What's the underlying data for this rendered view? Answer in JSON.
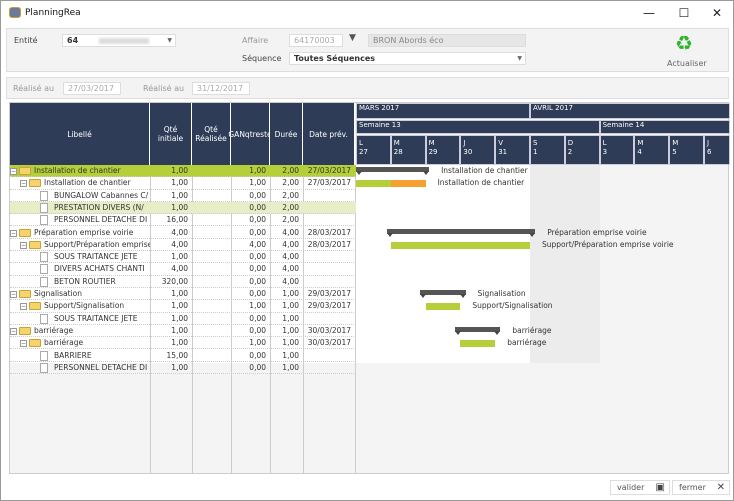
{
  "window": {
    "title": "PlanningRea",
    "minimize": "—",
    "maximize": "☐",
    "close": "✕"
  },
  "filters": {
    "entite_label": "Entité",
    "entite_value": "64",
    "affaire_label": "Affaire",
    "affaire_value": "64170003",
    "affaire_name": "BRON Abords éco",
    "sequence_label": "Séquence",
    "sequence_value": "Toutes Séquences",
    "refresh_label": "Actualiser"
  },
  "dates": {
    "realise_label_1": "Réalisé au",
    "realise_value_1": "27/03/2017",
    "realise_label_2": "Réalisé au",
    "realise_value_2": "31/12/2017"
  },
  "columns": [
    "Libellé",
    "Qté initiale",
    "Qté Réalisée",
    "GANqtreste",
    "Durée",
    "Date prév."
  ],
  "gantt": {
    "months": [
      "MARS 2017",
      "AVRIL 2017"
    ],
    "weeks": [
      "Semaine 13",
      "Semaine 14"
    ],
    "days": [
      [
        "L",
        "27"
      ],
      [
        "M",
        "28"
      ],
      [
        "M",
        "29"
      ],
      [
        "J",
        "30"
      ],
      [
        "V",
        "31"
      ],
      [
        "S",
        "1"
      ],
      [
        "D",
        "2"
      ],
      [
        "L",
        "3"
      ],
      [
        "M",
        "4"
      ],
      [
        "M",
        "5"
      ],
      [
        "J",
        "6"
      ]
    ],
    "colors": {
      "summary": "#555555",
      "done": "#b5cf3a",
      "remaining": "#f5a030"
    }
  },
  "rows": [
    {
      "level": 0,
      "type": "folder",
      "label": "Installation de chantier",
      "qi": "1,00",
      "qr": "",
      "gan": "1,00",
      "duree": "2,00",
      "date": "27/03/2017",
      "state": "sel",
      "bar": {
        "kind": "summary",
        "start": 0,
        "days": 2.1
      },
      "bar_label": "Installation de chantier"
    },
    {
      "level": 1,
      "type": "folder",
      "label": "Installation de chantier",
      "qi": "1,00",
      "qr": "",
      "gan": "1,00",
      "duree": "2,00",
      "date": "27/03/2017",
      "bar": {
        "kind": "task",
        "start": 0,
        "days": 2,
        "done": 1
      },
      "bar_label": "Installation de chantier"
    },
    {
      "level": 2,
      "type": "doc",
      "label": "BUNGALOW Cabannes C/",
      "qi": "1,00",
      "qr": "",
      "gan": "0,00",
      "duree": "2,00",
      "date": ""
    },
    {
      "level": 2,
      "type": "doc",
      "label": "PRESTATION DIVERS (N/",
      "qi": "1,00",
      "qr": "",
      "gan": "0,00",
      "duree": "2,00",
      "date": "",
      "state": "hl"
    },
    {
      "level": 2,
      "type": "doc",
      "label": "PERSONNEL DETACHE DI",
      "qi": "16,00",
      "qr": "",
      "gan": "0,00",
      "duree": "2,00",
      "date": ""
    },
    {
      "level": 0,
      "type": "folder",
      "label": "Préparation emprise voirie",
      "qi": "4,00",
      "qr": "",
      "gan": "0,00",
      "duree": "4,00",
      "date": "28/03/2017",
      "bar": {
        "kind": "summary",
        "start": 0.9,
        "days": 4.25
      },
      "bar_label": "Préparation emprise voirie"
    },
    {
      "level": 1,
      "type": "folder",
      "label": "Support/Préparation emprise",
      "qi": "4,00",
      "qr": "",
      "gan": "4,00",
      "duree": "4,00",
      "date": "28/03/2017",
      "bar": {
        "kind": "task",
        "start": 1,
        "days": 4,
        "done": 4
      },
      "bar_label": "Support/Préparation emprise voirie"
    },
    {
      "level": 2,
      "type": "doc",
      "label": "SOUS TRAITANCE JETE",
      "qi": "1,00",
      "qr": "",
      "gan": "0,00",
      "duree": "4,00",
      "date": ""
    },
    {
      "level": 2,
      "type": "doc",
      "label": "DIVERS ACHATS CHANTI",
      "qi": "4,00",
      "qr": "",
      "gan": "0,00",
      "duree": "4,00",
      "date": ""
    },
    {
      "level": 2,
      "type": "doc",
      "label": "BETON ROUTIER",
      "qi": "320,00",
      "qr": "",
      "gan": "0,00",
      "duree": "4,00",
      "date": ""
    },
    {
      "level": 0,
      "type": "folder",
      "label": "Signalisation",
      "qi": "1,00",
      "qr": "",
      "gan": "0,00",
      "duree": "1,00",
      "date": "29/03/2017",
      "bar": {
        "kind": "summary",
        "start": 1.85,
        "days": 1.3
      },
      "bar_label": "Signalisation"
    },
    {
      "level": 1,
      "type": "folder",
      "label": "Support/Signalisation",
      "qi": "1,00",
      "qr": "",
      "gan": "1,00",
      "duree": "1,00",
      "date": "29/03/2017",
      "bar": {
        "kind": "task",
        "start": 2,
        "days": 1,
        "done": 1
      },
      "bar_label": "Support/Signalisation"
    },
    {
      "level": 2,
      "type": "doc",
      "label": "SOUS TRAITANCE JETE",
      "qi": "1,00",
      "qr": "",
      "gan": "0,00",
      "duree": "1,00",
      "date": ""
    },
    {
      "level": 0,
      "type": "folder",
      "label": "barriérage",
      "qi": "1,00",
      "qr": "",
      "gan": "0,00",
      "duree": "1,00",
      "date": "30/03/2017",
      "bar": {
        "kind": "summary",
        "start": 2.85,
        "days": 1.3
      },
      "bar_label": "barriérage"
    },
    {
      "level": 1,
      "type": "folder",
      "label": "barriérage",
      "qi": "1,00",
      "qr": "",
      "gan": "1,00",
      "duree": "1,00",
      "date": "30/03/2017",
      "bar": {
        "kind": "task",
        "start": 3,
        "days": 1,
        "done": 1
      },
      "bar_label": "barriérage"
    },
    {
      "level": 2,
      "type": "doc",
      "label": "BARRIERE",
      "qi": "15,00",
      "qr": "",
      "gan": "0,00",
      "duree": "1,00",
      "date": ""
    },
    {
      "level": 2,
      "type": "doc",
      "label": "PERSONNEL DETACHE DI",
      "qi": "1,00",
      "qr": "",
      "gan": "0,00",
      "duree": "1,00",
      "date": ""
    }
  ],
  "footer": {
    "validate": "valider",
    "close": "fermer"
  }
}
